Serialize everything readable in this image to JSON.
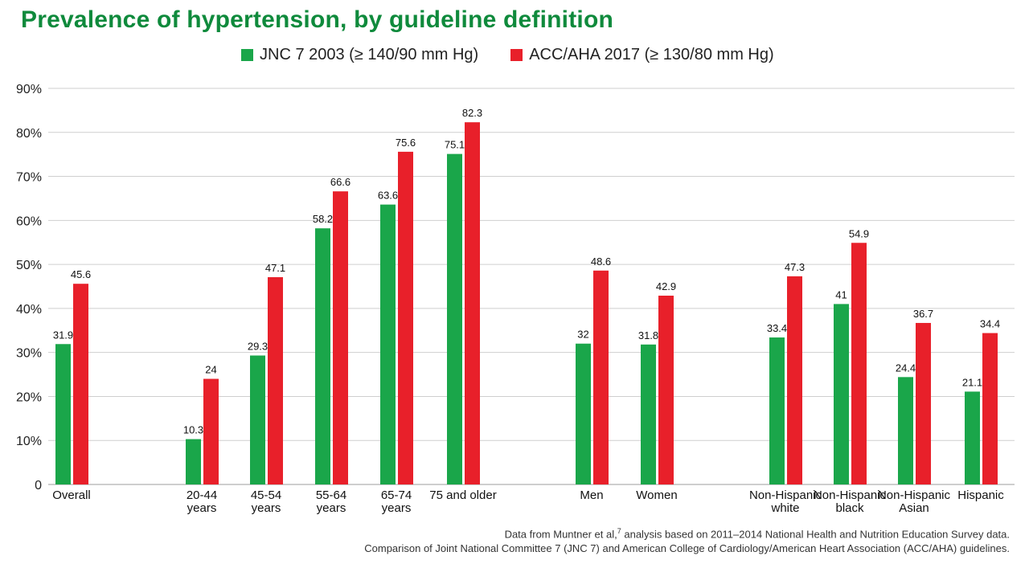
{
  "colors": {
    "jnc": "#1aa64a",
    "acc": "#e8202a",
    "title": "#0f8a3c",
    "grid": "#cfcfcf"
  },
  "chart_data": {
    "type": "bar",
    "title": "Prevalence of hypertension, by guideline definition",
    "ylim": [
      0,
      90
    ],
    "yticks": [
      "0",
      "10%",
      "20%",
      "30%",
      "40%",
      "50%",
      "60%",
      "70%",
      "80%",
      "90%"
    ],
    "grid": true,
    "legend_position": "top",
    "categories": [
      [
        "Overall"
      ],
      [
        "20-44",
        "years"
      ],
      [
        "45-54",
        "years"
      ],
      [
        "55-64",
        "years"
      ],
      [
        "65-74",
        "years"
      ],
      [
        "75 and older"
      ],
      [
        "Men"
      ],
      [
        "Women"
      ],
      [
        "Non-Hispanic",
        "white"
      ],
      [
        "Non-Hispanic",
        "black"
      ],
      [
        "Non-Hispanic",
        "Asian"
      ],
      [
        "Hispanic"
      ]
    ],
    "series": [
      {
        "name": "JNC 7 2003 (≥ 140/90 mm Hg)",
        "color": "#1aa64a",
        "values": [
          31.9,
          10.3,
          29.3,
          58.2,
          63.6,
          75.1,
          32,
          31.8,
          33.4,
          41,
          24.4,
          21.1
        ]
      },
      {
        "name": "ACC/AHA 2017 (≥ 130/80 mm Hg)",
        "color": "#e8202a",
        "values": [
          45.6,
          24,
          47.1,
          66.6,
          75.6,
          82.3,
          48.6,
          42.9,
          47.3,
          54.9,
          36.7,
          34.4
        ]
      }
    ]
  },
  "footnote": {
    "line1_pre": "Data from Muntner et al,",
    "line1_sup": "7",
    "line1_post": " analysis based on 2011–2014 National Health and Nutrition Education Survey data.",
    "line2": "Comparison of Joint National Committee 7 (JNC 7) and American College of Cardiology/American Heart Association (ACC/AHA) guidelines."
  }
}
